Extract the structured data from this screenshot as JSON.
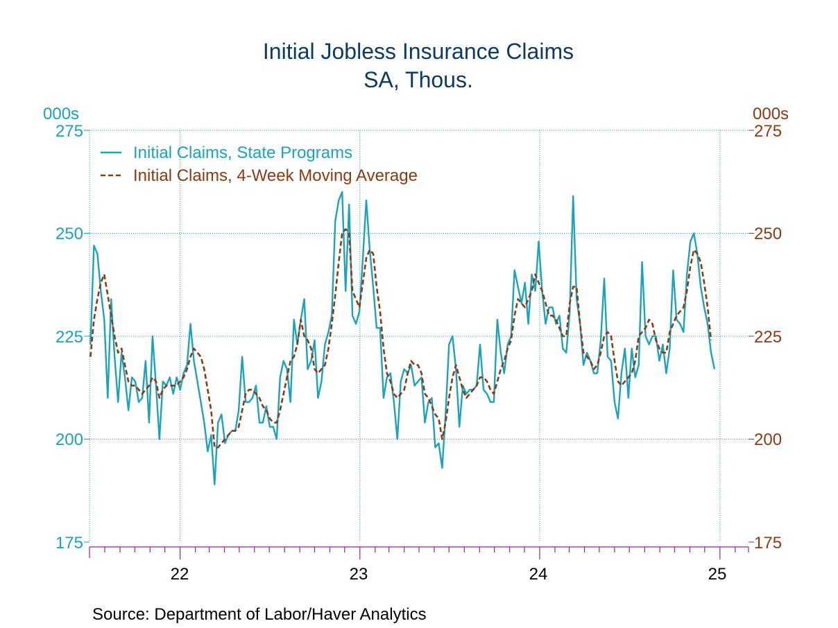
{
  "chart_data": {
    "type": "line",
    "title": "Initial Jobless Insurance Claims",
    "subtitle": "SA, Thous.",
    "y_unit_left": "000s",
    "y_unit_right": "000s",
    "ylim": [
      175,
      275
    ],
    "yticks": [
      "275",
      "250",
      "225",
      "200",
      "175"
    ],
    "x_tick_labels": [
      "22",
      "23",
      "24",
      "25"
    ],
    "xlim": [
      "2021-07-01",
      "2025-02-28"
    ],
    "grid": true,
    "legend_position": "top-left",
    "source": "Source:  Department of Labor/Haver Analytics",
    "colors": {
      "state": "#1aa3bd",
      "avg": "#8b3a12",
      "axis": "#1aa3bd",
      "x_axis": "#9b1d9b",
      "title": "#0b3a66"
    },
    "series": [
      {
        "name": "Initial Claims, State Programs",
        "style": "solid",
        "x_start": "2021-07-03",
        "x_step_days": 7,
        "values": [
          223,
          247,
          245,
          236,
          229,
          210,
          234,
          220,
          209,
          221,
          215,
          207,
          215,
          214,
          209,
          210,
          219,
          204,
          225,
          213,
          200,
          214,
          213,
          215,
          211,
          215,
          212,
          216,
          218,
          228,
          219,
          214,
          209,
          204,
          197,
          201,
          189,
          204,
          206,
          199,
          201,
          202,
          202,
          207,
          220,
          209,
          209,
          210,
          213,
          204,
          204,
          208,
          203,
          203,
          200,
          215,
          219,
          217,
          209,
          229,
          223,
          229,
          234,
          217,
          219,
          224,
          210,
          214,
          223,
          226,
          230,
          253,
          258,
          260,
          236,
          257,
          230,
          228,
          231,
          244,
          258,
          246,
          237,
          227,
          227,
          210,
          215,
          216,
          209,
          200,
          214,
          217,
          216,
          218,
          213,
          214,
          215,
          204,
          209,
          210,
          198,
          199,
          193,
          206,
          223,
          225,
          217,
          203,
          213,
          211,
          212,
          212,
          213,
          223,
          212,
          211,
          209,
          209,
          229,
          221,
          216,
          223,
          225,
          241,
          237,
          233,
          238,
          228,
          240,
          236,
          248,
          236,
          228,
          232,
          232,
          228,
          230,
          222,
          221,
          231,
          259,
          234,
          228,
          218,
          221,
          219,
          216,
          216,
          224,
          239,
          220,
          219,
          209,
          205,
          216,
          222,
          210,
          222,
          215,
          218,
          243,
          225,
          223,
          225,
          225,
          219,
          223,
          216,
          222,
          241,
          229,
          228,
          226,
          240,
          248,
          250,
          245,
          237,
          232,
          228,
          221,
          217
        ]
      },
      {
        "name": "Initial Claims, 4-Week Moving Average",
        "style": "dashed",
        "x_start": "2021-07-03",
        "x_step_days": 7,
        "values": [
          220,
          229,
          234,
          238,
          240,
          235,
          230,
          225,
          221,
          222,
          218,
          214,
          213,
          213,
          212,
          211,
          212,
          213,
          215,
          214,
          210,
          212,
          213,
          213,
          213,
          213,
          214,
          215,
          217,
          220,
          222,
          221,
          220,
          217,
          212,
          207,
          198,
          198,
          199,
          200,
          201,
          202,
          202,
          203,
          207,
          211,
          212,
          212,
          211,
          210,
          208,
          207,
          205,
          204,
          204,
          207,
          211,
          215,
          219,
          220,
          223,
          229,
          225,
          224,
          222,
          217,
          216,
          217,
          218,
          222,
          228,
          235,
          243,
          250,
          251,
          250,
          236,
          234,
          232,
          238,
          244,
          246,
          245,
          237,
          231,
          222,
          216,
          214,
          211,
          210,
          211,
          212,
          216,
          219,
          218,
          218,
          216,
          211,
          210,
          208,
          206,
          205,
          200,
          204,
          210,
          215,
          218,
          215,
          212,
          210,
          211,
          212,
          213,
          215,
          215,
          214,
          212,
          211,
          214,
          217,
          219,
          222,
          224,
          230,
          234,
          233,
          232,
          234,
          236,
          240,
          238,
          236,
          233,
          230,
          230,
          229,
          227,
          225,
          225,
          233,
          237,
          237,
          228,
          221,
          220,
          219,
          217,
          218,
          221,
          225,
          226,
          225,
          219,
          214,
          213,
          214,
          215,
          216,
          219,
          225,
          226,
          227,
          229,
          228,
          224,
          222,
          221,
          221,
          226,
          228,
          230,
          231,
          232,
          236,
          242,
          246,
          245,
          243,
          238,
          232,
          224
        ]
      }
    ]
  }
}
